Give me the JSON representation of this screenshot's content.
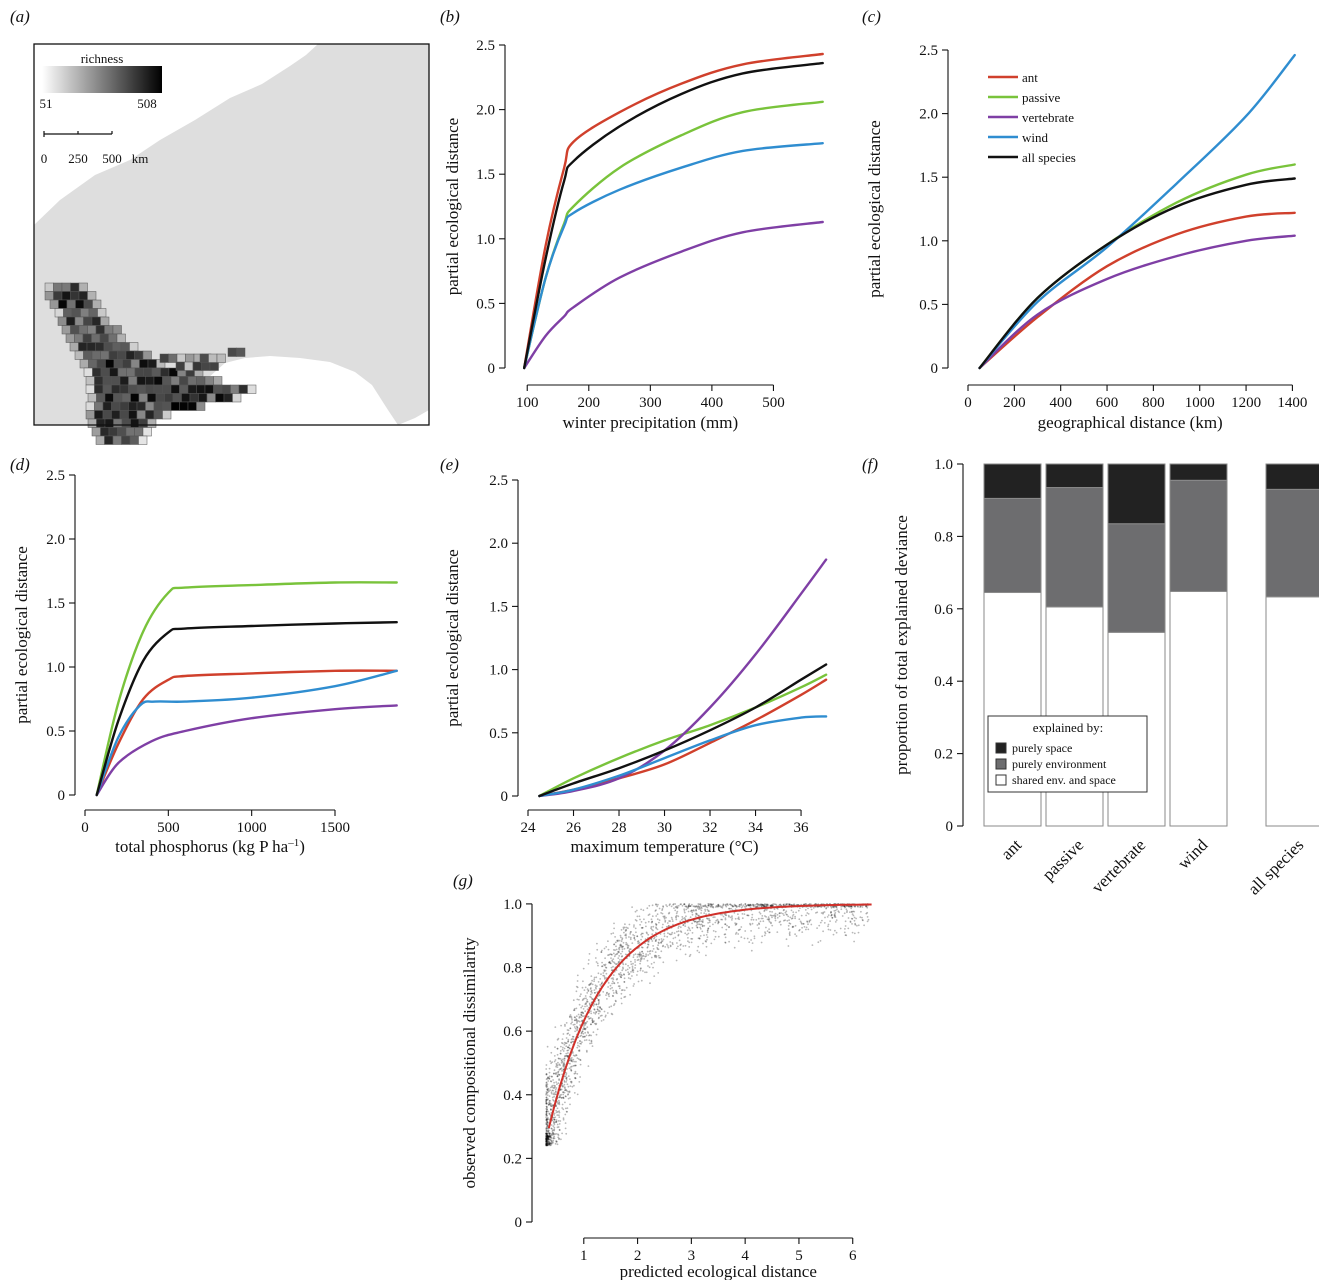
{
  "colors": {
    "ant": "#d0402c",
    "passive": "#79c33b",
    "vertebrate": "#7f3fa5",
    "wind": "#2f8dd0",
    "all_species": "#111111",
    "purely_space": "#222222",
    "purely_environment": "#6d6d6f",
    "shared": "#ffffff",
    "map_land": "#dedede",
    "fit_line": "#d0302a"
  },
  "panel_labels": [
    "(a)",
    "(b)",
    "(c)",
    "(d)",
    "(e)",
    "(f)",
    "(g)"
  ],
  "legend_series": [
    "ant",
    "passive",
    "vertebrate",
    "wind",
    "all species"
  ],
  "map": {
    "richness_label": "richness",
    "richness_min": "51",
    "richness_max": "508",
    "scale_ticks": [
      "0",
      "250",
      "500"
    ],
    "scale_unit": "km"
  },
  "chart_data": [
    {
      "panel": "(b)",
      "type": "line",
      "xlabel": "winter precipitation (mm)",
      "ylabel": "partial ecological distance",
      "xlim": [
        85,
        600
      ],
      "ylim": [
        0,
        2.5
      ],
      "xticks": [
        100,
        200,
        300,
        400,
        500
      ],
      "yticks": [
        0,
        0.5,
        1.0,
        1.5,
        2.0,
        2.5
      ],
      "ytick_labels": [
        "0",
        "0.5",
        "1.0",
        "1.5",
        "2.0",
        "2.5"
      ],
      "series": [
        {
          "name": "ant",
          "color": "#d0402c",
          "points": [
            [
              95,
              0
            ],
            [
              130,
              0.95
            ],
            [
              160,
              1.55
            ],
            [
              175,
              1.75
            ],
            [
              250,
              1.98
            ],
            [
              350,
              2.2
            ],
            [
              450,
              2.35
            ],
            [
              580,
              2.43
            ]
          ]
        },
        {
          "name": "passive",
          "color": "#79c33b",
          "points": [
            [
              95,
              0
            ],
            [
              130,
              0.7
            ],
            [
              160,
              1.12
            ],
            [
              175,
              1.25
            ],
            [
              250,
              1.55
            ],
            [
              350,
              1.8
            ],
            [
              450,
              1.98
            ],
            [
              580,
              2.06
            ]
          ]
        },
        {
          "name": "vertebrate",
          "color": "#7f3fa5",
          "points": [
            [
              95,
              0
            ],
            [
              130,
              0.25
            ],
            [
              160,
              0.4
            ],
            [
              175,
              0.47
            ],
            [
              250,
              0.7
            ],
            [
              350,
              0.9
            ],
            [
              450,
              1.05
            ],
            [
              580,
              1.13
            ]
          ]
        },
        {
          "name": "wind",
          "color": "#2f8dd0",
          "points": [
            [
              95,
              0
            ],
            [
              130,
              0.7
            ],
            [
              160,
              1.1
            ],
            [
              175,
              1.2
            ],
            [
              250,
              1.38
            ],
            [
              350,
              1.55
            ],
            [
              450,
              1.68
            ],
            [
              580,
              1.74
            ]
          ]
        },
        {
          "name": "all species",
          "color": "#111111",
          "points": [
            [
              95,
              0
            ],
            [
              130,
              0.85
            ],
            [
              160,
              1.45
            ],
            [
              175,
              1.6
            ],
            [
              250,
              1.87
            ],
            [
              350,
              2.12
            ],
            [
              450,
              2.28
            ],
            [
              580,
              2.36
            ]
          ]
        }
      ]
    },
    {
      "panel": "(c)",
      "type": "line",
      "xlabel": "geographical distance (km)",
      "ylabel": "partial ecological distance",
      "xlim": [
        0,
        1450
      ],
      "ylim": [
        0,
        2.5
      ],
      "xticks": [
        0,
        200,
        400,
        600,
        800,
        1000,
        1200,
        1400
      ],
      "yticks": [
        0,
        0.5,
        1.0,
        1.5,
        2.0,
        2.5
      ],
      "ytick_labels": [
        "0",
        "0.5",
        "1.0",
        "1.5",
        "2.0",
        "2.5"
      ],
      "legend": [
        "ant",
        "passive",
        "vertebrate",
        "wind",
        "all species"
      ],
      "series": [
        {
          "name": "ant",
          "color": "#d0402c",
          "points": [
            [
              50,
              0
            ],
            [
              300,
              0.4
            ],
            [
              600,
              0.8
            ],
            [
              900,
              1.05
            ],
            [
              1200,
              1.19
            ],
            [
              1410,
              1.22
            ]
          ]
        },
        {
          "name": "passive",
          "color": "#79c33b",
          "points": [
            [
              50,
              0
            ],
            [
              300,
              0.55
            ],
            [
              600,
              0.97
            ],
            [
              900,
              1.3
            ],
            [
              1200,
              1.52
            ],
            [
              1410,
              1.6
            ]
          ]
        },
        {
          "name": "vertebrate",
          "color": "#7f3fa5",
          "points": [
            [
              50,
              0
            ],
            [
              300,
              0.42
            ],
            [
              600,
              0.7
            ],
            [
              900,
              0.88
            ],
            [
              1200,
              1.0
            ],
            [
              1410,
              1.04
            ]
          ]
        },
        {
          "name": "wind",
          "color": "#2f8dd0",
          "points": [
            [
              50,
              0
            ],
            [
              300,
              0.52
            ],
            [
              600,
              0.95
            ],
            [
              900,
              1.45
            ],
            [
              1200,
              1.98
            ],
            [
              1410,
              2.46
            ]
          ]
        },
        {
          "name": "all species",
          "color": "#111111",
          "points": [
            [
              50,
              0
            ],
            [
              300,
              0.55
            ],
            [
              600,
              0.97
            ],
            [
              900,
              1.27
            ],
            [
              1200,
              1.44
            ],
            [
              1410,
              1.49
            ]
          ]
        }
      ]
    },
    {
      "panel": "(d)",
      "type": "line",
      "xlabel": "total phosphorus (kg P ha",
      "xlabel_sup": "–1",
      "xlabel_end": ")",
      "ylabel": "partial ecological distance",
      "xlim": [
        0,
        1950
      ],
      "ylim": [
        0,
        2.5
      ],
      "xticks": [
        0,
        500,
        1000,
        1500
      ],
      "yticks": [
        0,
        0.5,
        1.0,
        1.5,
        2.0,
        2.5
      ],
      "ytick_labels": [
        "0",
        "0.5",
        "1.0",
        "1.5",
        "2.0",
        "2.5"
      ],
      "series": [
        {
          "name": "ant",
          "color": "#d0402c",
          "points": [
            [
              70,
              0
            ],
            [
              200,
              0.4
            ],
            [
              350,
              0.75
            ],
            [
              500,
              0.9
            ],
            [
              600,
              0.93
            ],
            [
              1000,
              0.95
            ],
            [
              1500,
              0.97
            ],
            [
              1870,
              0.97
            ]
          ]
        },
        {
          "name": "passive",
          "color": "#79c33b",
          "points": [
            [
              70,
              0
            ],
            [
              200,
              0.72
            ],
            [
              350,
              1.28
            ],
            [
              500,
              1.58
            ],
            [
              600,
              1.62
            ],
            [
              1000,
              1.64
            ],
            [
              1500,
              1.66
            ],
            [
              1870,
              1.66
            ]
          ]
        },
        {
          "name": "vertebrate",
          "color": "#7f3fa5",
          "points": [
            [
              70,
              0
            ],
            [
              200,
              0.25
            ],
            [
              400,
              0.42
            ],
            [
              600,
              0.5
            ],
            [
              1000,
              0.6
            ],
            [
              1500,
              0.67
            ],
            [
              1870,
              0.7
            ]
          ]
        },
        {
          "name": "wind",
          "color": "#2f8dd0",
          "points": [
            [
              70,
              0
            ],
            [
              200,
              0.45
            ],
            [
              330,
              0.7
            ],
            [
              420,
              0.73
            ],
            [
              600,
              0.73
            ],
            [
              1000,
              0.76
            ],
            [
              1500,
              0.85
            ],
            [
              1870,
              0.97
            ]
          ]
        },
        {
          "name": "all species",
          "color": "#111111",
          "points": [
            [
              70,
              0
            ],
            [
              200,
              0.58
            ],
            [
              350,
              1.05
            ],
            [
              500,
              1.27
            ],
            [
              600,
              1.3
            ],
            [
              1000,
              1.32
            ],
            [
              1500,
              1.34
            ],
            [
              1870,
              1.35
            ]
          ]
        }
      ]
    },
    {
      "panel": "(e)",
      "type": "line",
      "xlabel": "maximum temperature (°C)",
      "ylabel": "partial ecological distance",
      "xlim": [
        24,
        37.8
      ],
      "ylim": [
        0,
        2.5
      ],
      "xticks": [
        24,
        26,
        28,
        30,
        32,
        34,
        36
      ],
      "yticks": [
        0,
        0.5,
        1.0,
        1.5,
        2.0,
        2.5
      ],
      "ytick_labels": [
        "0",
        "0.5",
        "1.0",
        "1.5",
        "2.0",
        "2.5"
      ],
      "series": [
        {
          "name": "ant",
          "color": "#d0402c",
          "points": [
            [
              24.5,
              0
            ],
            [
              26,
              0.05
            ],
            [
              28,
              0.14
            ],
            [
              30,
              0.25
            ],
            [
              32,
              0.42
            ],
            [
              34,
              0.6
            ],
            [
              36,
              0.8
            ],
            [
              37.1,
              0.92
            ]
          ]
        },
        {
          "name": "passive",
          "color": "#79c33b",
          "points": [
            [
              24.5,
              0
            ],
            [
              26,
              0.14
            ],
            [
              28,
              0.3
            ],
            [
              30,
              0.44
            ],
            [
              32,
              0.56
            ],
            [
              34,
              0.7
            ],
            [
              36,
              0.86
            ],
            [
              37.1,
              0.96
            ]
          ]
        },
        {
          "name": "vertebrate",
          "color": "#7f3fa5",
          "points": [
            [
              24.5,
              0
            ],
            [
              26,
              0.04
            ],
            [
              28,
              0.14
            ],
            [
              30,
              0.36
            ],
            [
              32,
              0.7
            ],
            [
              34,
              1.12
            ],
            [
              36,
              1.6
            ],
            [
              37.1,
              1.87
            ]
          ]
        },
        {
          "name": "wind",
          "color": "#2f8dd0",
          "points": [
            [
              24.5,
              0
            ],
            [
              26,
              0.05
            ],
            [
              28,
              0.16
            ],
            [
              30,
              0.3
            ],
            [
              32,
              0.44
            ],
            [
              34,
              0.56
            ],
            [
              36,
              0.62
            ],
            [
              37.1,
              0.63
            ]
          ]
        },
        {
          "name": "all species",
          "color": "#111111",
          "points": [
            [
              24.5,
              0
            ],
            [
              26,
              0.1
            ],
            [
              28,
              0.22
            ],
            [
              30,
              0.36
            ],
            [
              32,
              0.52
            ],
            [
              34,
              0.7
            ],
            [
              36,
              0.92
            ],
            [
              37.1,
              1.04
            ]
          ]
        }
      ]
    },
    {
      "panel": "(f)",
      "type": "bar",
      "stacked": true,
      "ylabel": "proportion of total explained deviance",
      "ylim": [
        0,
        1.0
      ],
      "yticks": [
        0,
        0.2,
        0.4,
        0.6,
        0.8,
        1.0
      ],
      "ytick_labels": [
        "0",
        "0.2",
        "0.4",
        "0.6",
        "0.8",
        "1.0"
      ],
      "categories": [
        "ant",
        "passive",
        "vertebrate",
        "wind",
        "all species"
      ],
      "series": [
        {
          "name": "shared env. and space",
          "color": "#ffffff",
          "values": [
            0.645,
            0.605,
            0.535,
            0.648,
            0.633
          ]
        },
        {
          "name": "purely environment",
          "color": "#6d6d6f",
          "values": [
            0.26,
            0.33,
            0.3,
            0.307,
            0.297
          ]
        },
        {
          "name": "purely space",
          "color": "#222222",
          "values": [
            0.095,
            0.065,
            0.165,
            0.045,
            0.07
          ]
        }
      ],
      "legend_title": "explained by:",
      "legend": [
        "purely space",
        "purely environment",
        "shared env. and space"
      ]
    },
    {
      "panel": "(g)",
      "type": "scatter",
      "xlabel": "predicted ecological distance",
      "ylabel": "observed compositional dissimilarity",
      "xlim": [
        0,
        6.6
      ],
      "ylim": [
        0,
        1.05
      ],
      "xticks": [
        1,
        2,
        3,
        4,
        5,
        6
      ],
      "yticks": [
        0,
        0.2,
        0.4,
        0.6,
        0.8,
        1.0
      ],
      "ytick_labels": [
        "0",
        "0.2",
        "0.4",
        "0.6",
        "0.8",
        "1.0"
      ],
      "fit_line": {
        "model": "1 - exp(-x)",
        "x_range": [
          0.35,
          6.35
        ]
      },
      "points_description_free_range_x": [
        0.3,
        6.3
      ]
    }
  ]
}
